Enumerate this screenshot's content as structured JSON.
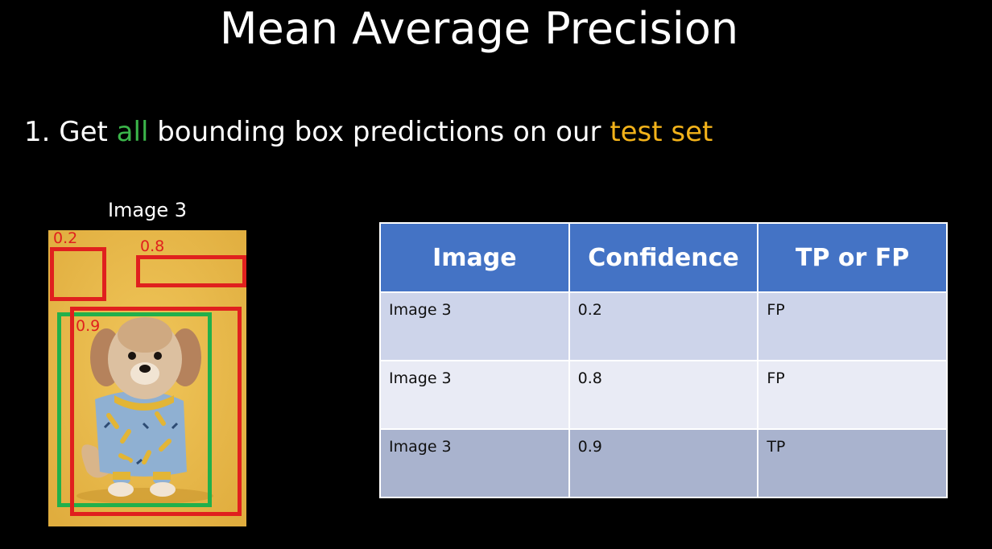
{
  "slide": {
    "title": "Mean Average Precision",
    "bullet": {
      "prefix": "1. Get ",
      "highlight_1": "all",
      "middle": " bounding box predictions on our ",
      "highlight_2": "test set"
    },
    "colors": {
      "highlight_1": "#3bb54a",
      "highlight_2": "#f2b21a",
      "prediction_box": "#e0201e",
      "ground_truth_box": "#21b04b",
      "table_header": "#4473c5"
    }
  },
  "example_image": {
    "caption": "Image 3",
    "predictions": [
      {
        "confidence_label": "0.2"
      },
      {
        "confidence_label": "0.8"
      },
      {
        "confidence_label": "0.9"
      }
    ]
  },
  "table": {
    "headers": [
      "Image",
      "Confidence",
      "TP or FP"
    ],
    "rows": [
      [
        "Image 3",
        "0.2",
        "FP"
      ],
      [
        "Image 3",
        "0.8",
        "FP"
      ],
      [
        "Image 3",
        "0.9",
        "TP"
      ]
    ]
  }
}
